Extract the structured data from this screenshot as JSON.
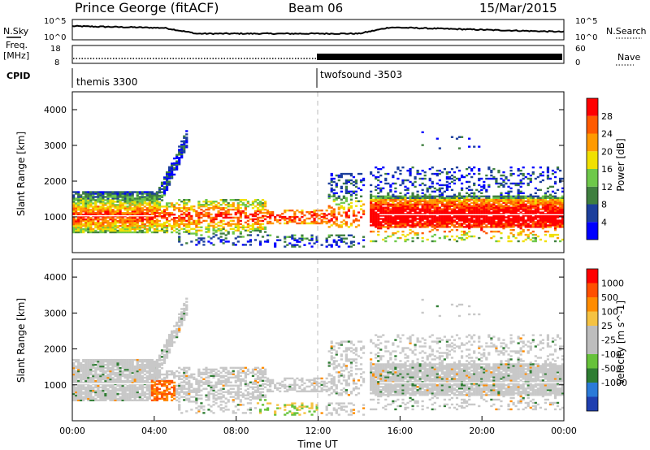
{
  "header": {
    "station": "Prince George (fitACF)",
    "beam": "Beam 06",
    "date": "15/Mar/2015"
  },
  "top_panels": {
    "nsky_label": "N.Sky",
    "nsearch_label": "N.Search",
    "nsky_ticks": [
      "10^5",
      "10^0"
    ],
    "nsearch_ticks": [
      "10^5",
      "10^0"
    ],
    "freq_label": "Freq.",
    "freq_unit": "[MHz]",
    "freq_ticks": [
      "18",
      "8"
    ],
    "nave_label": "Nave",
    "nave_ticks": [
      "60",
      "0"
    ],
    "cpid_label": "CPID",
    "cpid_segments": [
      {
        "label": "themis 3300",
        "start_hour": 0,
        "end_hour": 12
      },
      {
        "label": "twofsound -3503",
        "start_hour": 12,
        "end_hour": 24
      }
    ]
  },
  "colors": {
    "power_scale": [
      "#0000ff",
      "#1c3f9c",
      "#3f7f3f",
      "#6ec84a",
      "#f0e000",
      "#ff9a00",
      "#ff5a00",
      "#ff0000"
    ],
    "velocity_scale": [
      "#1f3fb0",
      "#2b7ad8",
      "#2e7d32",
      "#66c23a",
      "#bdbdbd",
      "#bdbdbd",
      "#f5c242",
      "#ff8c00",
      "#ff5000",
      "#ff0000"
    ],
    "scatter_gray": "#c8c8c8",
    "dash_line": "#bbbbbb"
  },
  "chart_data": [
    {
      "type": "heatmap",
      "panel": "power",
      "xlabel": "",
      "ylabel": "Slant Range [km]",
      "xlim": [
        0,
        24
      ],
      "ylim": [
        0,
        4500
      ],
      "yticks": [
        "1000",
        "2000",
        "3000",
        "4000"
      ],
      "colorbar_label": "Power [dB]",
      "colorbar_ticks": [
        "4",
        "8",
        "12",
        "16",
        "20",
        "24",
        "28"
      ]
    },
    {
      "type": "heatmap",
      "panel": "velocity",
      "xlabel": "Time UT",
      "ylabel": "Slant Range [km]",
      "xlim": [
        0,
        24
      ],
      "ylim": [
        0,
        4500
      ],
      "xticks": [
        "00:00",
        "04:00",
        "08:00",
        "12:00",
        "16:00",
        "20:00",
        "00:00"
      ],
      "yticks": [
        "1000",
        "2000",
        "3000",
        "4000"
      ],
      "colorbar_label": "Velocity [m s^-1]",
      "colorbar_ticks": [
        "1000",
        "500",
        "100",
        "25",
        "-25",
        "-100",
        "-500",
        "-1000"
      ]
    }
  ]
}
